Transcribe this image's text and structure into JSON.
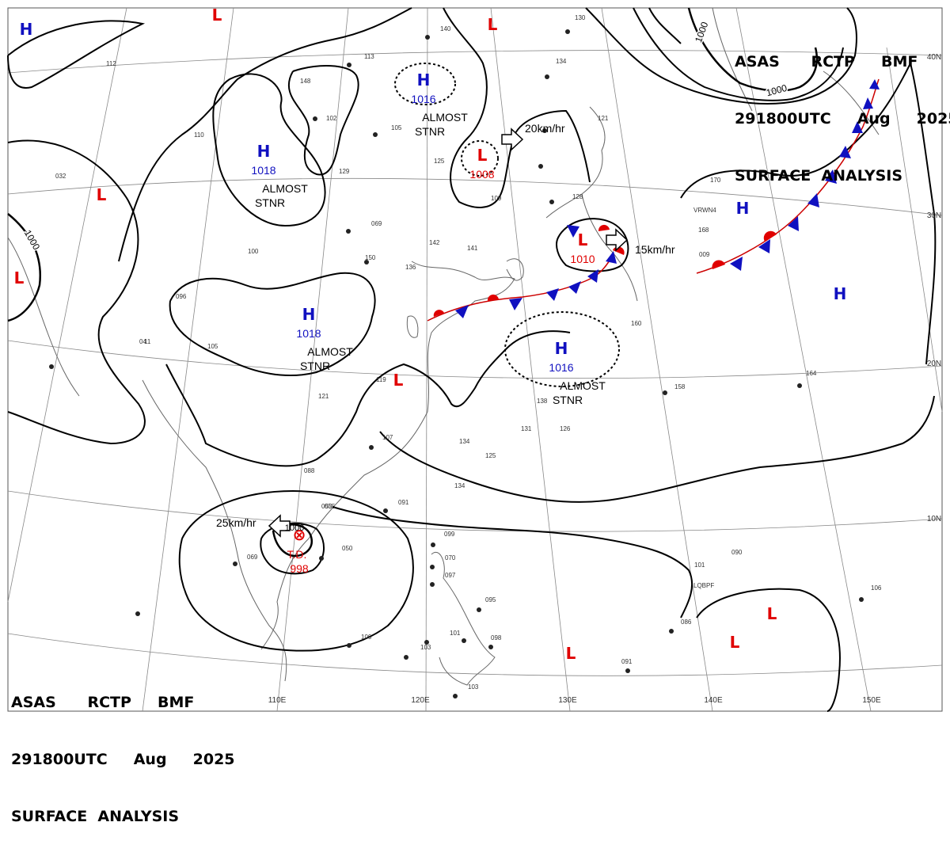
{
  "header": {
    "line1": "ASAS      RCTP     BMF",
    "line2": "291800UTC     Aug     2025",
    "line3": "SURFACE  ANALYSIS"
  },
  "latitudes": [
    "40N",
    "30N",
    "20N",
    "10N"
  ],
  "longitudes": [
    "110E",
    "120E",
    "130E",
    "140E",
    "150E"
  ],
  "isobar_labels": [
    "1000",
    "1000",
    "1000"
  ],
  "systems": [
    {
      "type": "H",
      "color": "#1010c0",
      "value": "1016",
      "note1": "ALMOST",
      "note2": "STNR"
    },
    {
      "type": "H",
      "color": "#1010c0",
      "value": "1018",
      "note1": "ALMOST",
      "note2": "STNR"
    },
    {
      "type": "H",
      "color": "#1010c0",
      "value": "1018",
      "note1": "ALMOST",
      "note2": "STNR"
    },
    {
      "type": "H",
      "color": "#1010c0",
      "value": "1016",
      "note1": "ALMOST",
      "note2": "STNR"
    },
    {
      "type": "L",
      "color": "#e00000",
      "value": "1008",
      "note1": "",
      "note2": ""
    },
    {
      "type": "L",
      "color": "#e00000",
      "value": "1010",
      "note1": "",
      "note2": ""
    },
    {
      "type": "L",
      "color": "#e00000",
      "value": "998",
      "note1": "T.D.",
      "note2": ""
    },
    {
      "type": "H",
      "color": "#1010c0",
      "value": "",
      "note1": "",
      "note2": ""
    },
    {
      "type": "H",
      "color": "#1010c0",
      "value": "",
      "note1": "",
      "note2": ""
    },
    {
      "type": "H",
      "color": "#1010c0",
      "value": "",
      "note1": "",
      "note2": ""
    },
    {
      "type": "L",
      "color": "#e00000",
      "value": "",
      "note1": "",
      "note2": ""
    },
    {
      "type": "L",
      "color": "#e00000",
      "value": "",
      "note1": "",
      "note2": ""
    },
    {
      "type": "L",
      "color": "#e00000",
      "value": "",
      "note1": "",
      "note2": ""
    },
    {
      "type": "L",
      "color": "#e00000",
      "value": "",
      "note1": "",
      "note2": ""
    },
    {
      "type": "L",
      "color": "#e00000",
      "value": "",
      "note1": "",
      "note2": ""
    },
    {
      "type": "L",
      "color": "#e00000",
      "value": "",
      "note1": "",
      "note2": ""
    },
    {
      "type": "L",
      "color": "#e00000",
      "value": "",
      "note1": "",
      "note2": ""
    },
    {
      "type": "L",
      "color": "#e00000",
      "value": "",
      "note1": "",
      "note2": ""
    }
  ],
  "motions": [
    "20km/hr",
    "15km/hr",
    "25km/hr"
  ],
  "stations": [
    "140",
    "113",
    "148",
    "102",
    "105",
    "129",
    "125",
    "130",
    "134",
    "121",
    "109",
    "128",
    "170",
    "168",
    "142",
    "141",
    "136",
    "150",
    "069",
    "100",
    "096",
    "105",
    "04",
    "055",
    "119",
    "121",
    "107",
    "134",
    "125",
    "134",
    "088",
    "053",
    "091",
    "050",
    "069",
    "099",
    "070",
    "097",
    "095",
    "101",
    "098",
    "103",
    "100",
    "103",
    "138",
    "131",
    "126",
    "160",
    "158",
    "164",
    "101",
    "090",
    "106",
    "086",
    "091",
    "009",
    "112",
    "110",
    "032",
    "11"
  ],
  "ship_ids": [
    "VRWN4",
    "LQBPF"
  ],
  "colors": {
    "high": "#1010c0",
    "low": "#e00000",
    "isobar": "#000000",
    "grid": "#888888",
    "coast": "#666666"
  }
}
